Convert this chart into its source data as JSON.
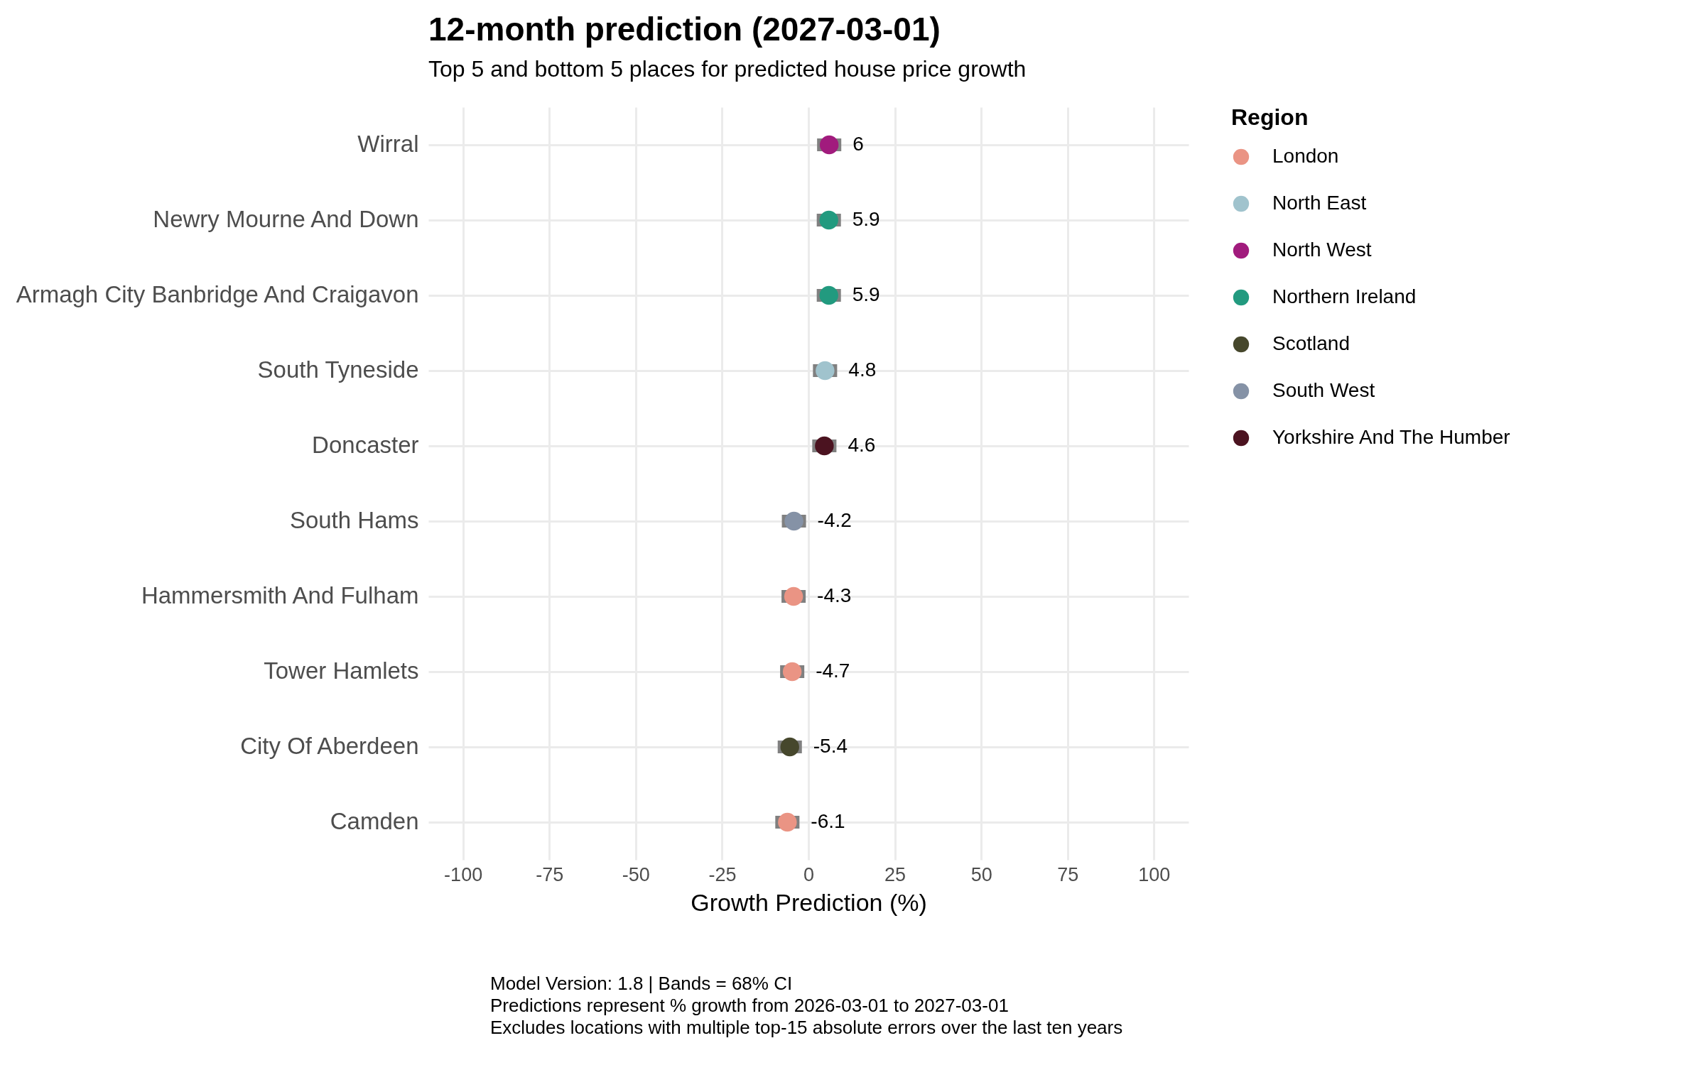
{
  "chart_data": {
    "type": "scatter",
    "orientation": "horizontal",
    "title": "12-month prediction (2027-03-01)",
    "subtitle": "Top 5 and bottom 5 places for predicted house price growth",
    "xlabel": "Growth Prediction (%)",
    "legend_title": "Region",
    "categories": [
      "Wirral",
      "Newry Mourne And Down",
      "Armagh City Banbridge And Craigavon",
      "South Tyneside",
      "Doncaster",
      "South Hams",
      "Hammersmith And Fulham",
      "Tower Hamlets",
      "City Of Aberdeen",
      "Camden"
    ],
    "series": [
      {
        "name": "London",
        "color": "#ea9484",
        "values": [
          null,
          null,
          null,
          null,
          null,
          null,
          -4.3,
          -4.7,
          null,
          -6.1
        ],
        "errors": [
          null,
          null,
          null,
          null,
          null,
          null,
          3.5,
          3.5,
          null,
          3.5
        ]
      },
      {
        "name": "North East",
        "color": "#a0c3cd",
        "values": [
          null,
          null,
          null,
          4.8,
          null,
          null,
          null,
          null,
          null,
          null
        ],
        "errors": [
          null,
          null,
          null,
          3.5,
          null,
          null,
          null,
          null,
          null,
          null
        ]
      },
      {
        "name": "North West",
        "color": "#a11b7d",
        "values": [
          6,
          null,
          null,
          null,
          null,
          null,
          null,
          null,
          null,
          null
        ],
        "errors": [
          3.5,
          null,
          null,
          null,
          null,
          null,
          null,
          null,
          null,
          null
        ]
      },
      {
        "name": "Northern Ireland",
        "color": "#229a7f",
        "values": [
          null,
          5.9,
          5.9,
          null,
          null,
          null,
          null,
          null,
          null,
          null
        ],
        "errors": [
          null,
          3.5,
          3.5,
          null,
          null,
          null,
          null,
          null,
          null,
          null
        ]
      },
      {
        "name": "Scotland",
        "color": "#46472c",
        "values": [
          null,
          null,
          null,
          null,
          null,
          null,
          null,
          null,
          -5.4,
          null
        ],
        "errors": [
          null,
          null,
          null,
          null,
          null,
          null,
          null,
          null,
          3.5,
          null
        ]
      },
      {
        "name": "South West",
        "color": "#8592a6",
        "values": [
          null,
          null,
          null,
          null,
          null,
          -4.2,
          null,
          null,
          null,
          null
        ],
        "errors": [
          null,
          null,
          null,
          null,
          null,
          3.5,
          null,
          null,
          null,
          null
        ]
      },
      {
        "name": "Yorkshire And The Humber",
        "color": "#4b1320",
        "values": [
          null,
          null,
          null,
          null,
          4.6,
          null,
          null,
          null,
          null,
          null
        ],
        "errors": [
          null,
          null,
          null,
          null,
          3.5,
          null,
          null,
          null,
          null,
          null
        ]
      }
    ],
    "xlim": [
      -110,
      110
    ],
    "xticks": [
      -100,
      -75,
      -50,
      -25,
      0,
      25,
      50,
      75,
      100
    ],
    "grid": true,
    "legend": "right",
    "marker": "circle",
    "data_labels": true,
    "annotations": [
      "Model Version: 1.8 | Bands = 68% CI",
      "Predictions represent % growth from 2026-03-01 to 2027-03-01",
      "Excludes locations with multiple top-15 absolute errors over the last ten years"
    ]
  }
}
